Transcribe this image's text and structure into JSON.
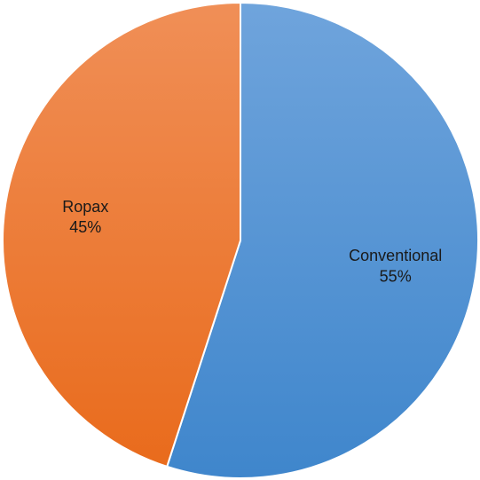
{
  "chart_data": {
    "type": "pie",
    "title": "",
    "legend": "none",
    "start_angle_deg": 0,
    "direction": "clockwise",
    "slices": [
      {
        "label": "Conventional",
        "value": 55,
        "value_label": "55%",
        "color_top": "#6fa4dc",
        "color_bottom": "#3f86cc"
      },
      {
        "label": "Ropax",
        "value": 45,
        "value_label": "45%",
        "color_top": "#f08f57",
        "color_bottom": "#e96b1c"
      }
    ]
  }
}
